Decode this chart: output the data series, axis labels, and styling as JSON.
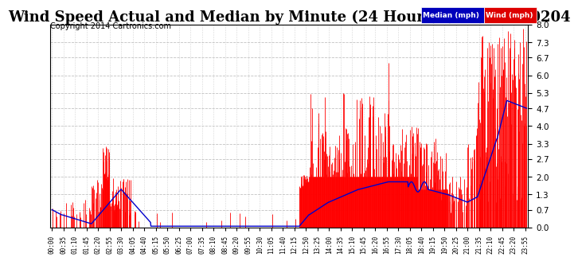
{
  "title": "Wind Speed Actual and Median by Minute (24 Hours) (Old) 20140204",
  "copyright": "Copyright 2014 Cartronics.com",
  "yticks": [
    0.0,
    0.7,
    1.3,
    2.0,
    2.7,
    3.3,
    4.0,
    4.7,
    5.3,
    6.0,
    6.7,
    7.3,
    8.0
  ],
  "ylim": [
    0.0,
    8.0
  ],
  "wind_color": "#ff0000",
  "median_color": "#0000cc",
  "bg_color": "#ffffff",
  "grid_color": "#bbbbbb",
  "title_fontsize": 13,
  "copyright_fontsize": 7,
  "tick_fontsize": 6,
  "minutes_per_day": 1440,
  "tick_every": 35
}
